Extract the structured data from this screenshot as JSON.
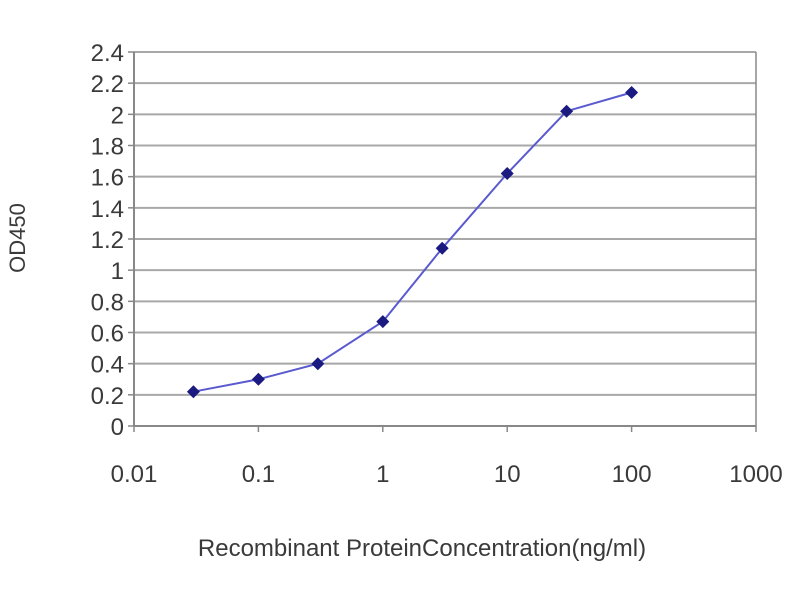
{
  "chart_data": {
    "type": "line",
    "title": "",
    "xlabel": "Recombinant ProteinConcentration(ng/ml)",
    "ylabel": "OD450",
    "x_scale": "log",
    "xlim": [
      0.01,
      1000
    ],
    "ylim": [
      0,
      2.4
    ],
    "x_ticks": [
      0.01,
      0.1,
      1,
      10,
      100,
      1000
    ],
    "x_tick_labels": [
      "0.01",
      "0.1",
      "1",
      "10",
      "100",
      "1000"
    ],
    "y_ticks": [
      0,
      0.2,
      0.4,
      0.6,
      0.8,
      1,
      1.2,
      1.4,
      1.6,
      1.8,
      2,
      2.2,
      2.4
    ],
    "y_tick_labels": [
      "0",
      "0.2",
      "0.4",
      "0.6",
      "0.8",
      "1",
      "1.2",
      "1.4",
      "1.6",
      "1.8",
      "2",
      "2.2",
      "2.4"
    ],
    "grid": "horizontal",
    "legend": "none",
    "series": [
      {
        "x": [
          0.03,
          0.1,
          0.3,
          1,
          3,
          10,
          30,
          100
        ],
        "y": [
          0.22,
          0.3,
          0.4,
          0.67,
          1.14,
          1.62,
          2.02,
          2.14
        ],
        "marker": "diamond"
      }
    ],
    "colors": {
      "line": "#5a5ad0",
      "marker": "#1a1a80",
      "grid": "#a8a8a8",
      "axis": "#888888",
      "plot_background": "#ffffff"
    }
  }
}
